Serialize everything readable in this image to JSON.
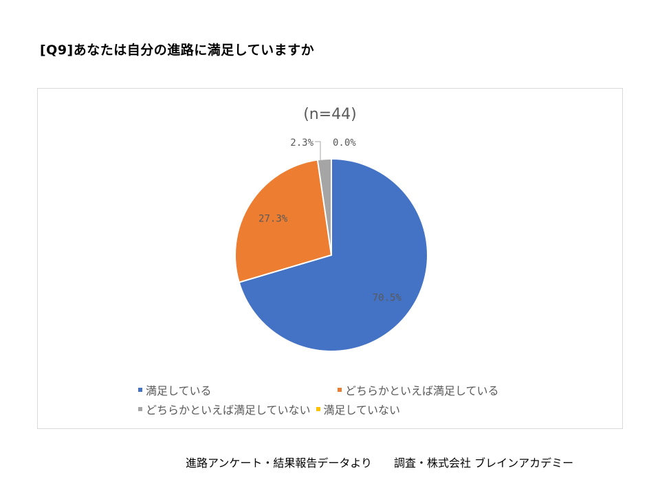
{
  "page": {
    "question_title": "[Q9]あなたは自分の進路に満足していますか",
    "source_note": "進路アンケート・結果報告データより　　調査・株式会社 ブレインアカデミー"
  },
  "chart_data": {
    "type": "pie",
    "title": "(n=44)",
    "categories": [
      "満足している",
      "どちらかといえば満足している",
      "どちらかといえば満足していない",
      "満足していない"
    ],
    "values": [
      70.5,
      27.3,
      2.3,
      0.0
    ],
    "labels": [
      "70.5%",
      "27.3%",
      "2.3%",
      "0.0%"
    ],
    "colors": [
      "#4472c4",
      "#ed7d31",
      "#a5a5a5",
      "#ffc000"
    ],
    "start_angle_deg": 0,
    "direction": "clockwise",
    "legend_position": "bottom"
  }
}
